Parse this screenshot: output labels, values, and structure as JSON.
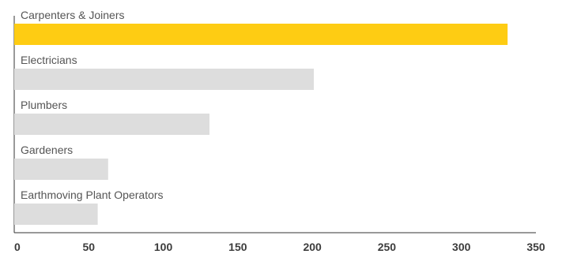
{
  "chart_data": {
    "type": "bar",
    "orientation": "horizontal",
    "categories": [
      "Carpenters & Joiners",
      "Electricians",
      "Plumbers",
      "Gardeners",
      "Earthmoving Plant Operators"
    ],
    "values": [
      331,
      201,
      131,
      63,
      56
    ],
    "highlight_index": 0,
    "xlim": [
      0,
      350
    ],
    "x_ticks": [
      "0",
      "50",
      "100",
      "150",
      "200",
      "250",
      "300",
      "350"
    ],
    "grid": false,
    "legend": "none",
    "colors": {
      "highlight": "#fecc13",
      "default": "#dddddd",
      "axis": "#333333"
    }
  }
}
